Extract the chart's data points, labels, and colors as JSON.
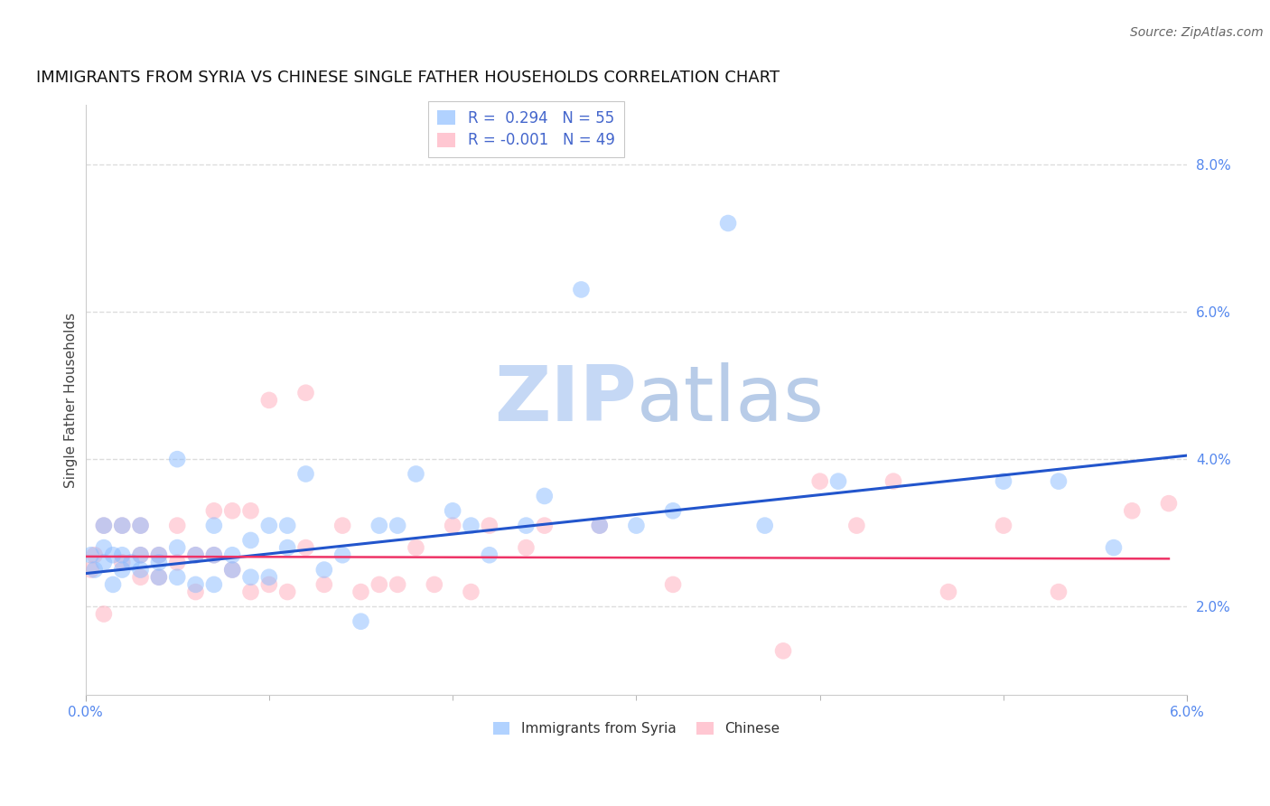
{
  "title": "IMMIGRANTS FROM SYRIA VS CHINESE SINGLE FATHER HOUSEHOLDS CORRELATION CHART",
  "source": "Source: ZipAtlas.com",
  "ylabel": "Single Father Households",
  "watermark_zip": "ZIP",
  "watermark_atlas": "atlas",
  "legend_entries": [
    {
      "label": "Immigrants from Syria",
      "R": " 0.294",
      "N": "55",
      "color": "#7aadff"
    },
    {
      "label": "Chinese",
      "R": "-0.001",
      "N": "49",
      "color": "#ff99bb"
    }
  ],
  "xlim": [
    0.0,
    0.06
  ],
  "ylim": [
    0.008,
    0.088
  ],
  "yticks": [
    0.02,
    0.04,
    0.06,
    0.08
  ],
  "ytick_labels": [
    "2.0%",
    "4.0%",
    "6.0%",
    "8.0%"
  ],
  "xticks": [
    0.0,
    0.06
  ],
  "xtick_labels": [
    "0.0%",
    "6.0%"
  ],
  "xticks_minor": [
    0.01,
    0.02,
    0.03,
    0.04,
    0.05
  ],
  "blue_scatter_x": [
    0.0003,
    0.0005,
    0.001,
    0.001,
    0.001,
    0.0015,
    0.0015,
    0.002,
    0.002,
    0.002,
    0.0025,
    0.003,
    0.003,
    0.003,
    0.004,
    0.004,
    0.004,
    0.005,
    0.005,
    0.005,
    0.006,
    0.006,
    0.007,
    0.007,
    0.007,
    0.008,
    0.008,
    0.009,
    0.009,
    0.01,
    0.01,
    0.011,
    0.011,
    0.012,
    0.013,
    0.014,
    0.015,
    0.016,
    0.017,
    0.018,
    0.02,
    0.021,
    0.022,
    0.024,
    0.025,
    0.027,
    0.028,
    0.03,
    0.032,
    0.035,
    0.037,
    0.041,
    0.05,
    0.053,
    0.056
  ],
  "blue_scatter_y": [
    0.027,
    0.025,
    0.026,
    0.028,
    0.031,
    0.023,
    0.027,
    0.025,
    0.027,
    0.031,
    0.026,
    0.025,
    0.027,
    0.031,
    0.024,
    0.026,
    0.027,
    0.024,
    0.028,
    0.04,
    0.023,
    0.027,
    0.023,
    0.027,
    0.031,
    0.025,
    0.027,
    0.024,
    0.029,
    0.024,
    0.031,
    0.028,
    0.031,
    0.038,
    0.025,
    0.027,
    0.018,
    0.031,
    0.031,
    0.038,
    0.033,
    0.031,
    0.027,
    0.031,
    0.035,
    0.063,
    0.031,
    0.031,
    0.033,
    0.072,
    0.031,
    0.037,
    0.037,
    0.037,
    0.028
  ],
  "pink_scatter_x": [
    0.0003,
    0.0005,
    0.001,
    0.001,
    0.002,
    0.002,
    0.003,
    0.003,
    0.003,
    0.004,
    0.004,
    0.005,
    0.005,
    0.006,
    0.006,
    0.007,
    0.007,
    0.008,
    0.008,
    0.009,
    0.009,
    0.01,
    0.01,
    0.011,
    0.012,
    0.012,
    0.013,
    0.014,
    0.015,
    0.016,
    0.017,
    0.018,
    0.019,
    0.02,
    0.021,
    0.022,
    0.024,
    0.025,
    0.028,
    0.032,
    0.038,
    0.04,
    0.042,
    0.044,
    0.047,
    0.05,
    0.053,
    0.057,
    0.059
  ],
  "pink_scatter_y": [
    0.025,
    0.027,
    0.019,
    0.031,
    0.026,
    0.031,
    0.024,
    0.027,
    0.031,
    0.024,
    0.027,
    0.026,
    0.031,
    0.022,
    0.027,
    0.027,
    0.033,
    0.025,
    0.033,
    0.022,
    0.033,
    0.023,
    0.048,
    0.022,
    0.049,
    0.028,
    0.023,
    0.031,
    0.022,
    0.023,
    0.023,
    0.028,
    0.023,
    0.031,
    0.022,
    0.031,
    0.028,
    0.031,
    0.031,
    0.023,
    0.014,
    0.037,
    0.031,
    0.037,
    0.022,
    0.031,
    0.022,
    0.033,
    0.034
  ],
  "blue_line_x": [
    0.0,
    0.06
  ],
  "blue_line_y": [
    0.0245,
    0.0405
  ],
  "pink_line_x": [
    0.0,
    0.059
  ],
  "pink_line_y": [
    0.0268,
    0.0265
  ],
  "blue_color": "#88bbff",
  "pink_color": "#ffaabb",
  "blue_line_color": "#2255cc",
  "pink_line_color": "#ee3366",
  "grid_color": "#dddddd",
  "background_color": "#ffffff",
  "title_fontsize": 13,
  "axis_label_fontsize": 11,
  "tick_fontsize": 11,
  "source_fontsize": 10,
  "watermark_fontsize_zip": 62,
  "watermark_fontsize_atlas": 62,
  "watermark_color_zip": "#c5d8f5",
  "watermark_color_atlas": "#b8cce8"
}
